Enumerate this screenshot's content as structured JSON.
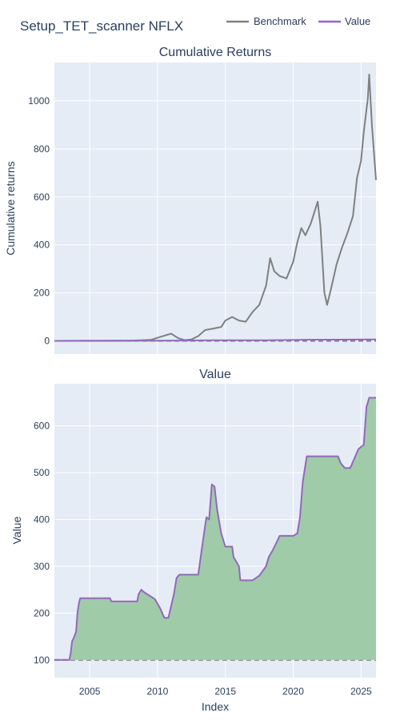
{
  "title": "Setup_TET_scanner NFLX",
  "legend": [
    {
      "name": "Benchmark",
      "color": "#808080"
    },
    {
      "name": "Value",
      "color": "#9467bd"
    }
  ],
  "chart_data": [
    {
      "type": "line",
      "title": "Cumulative Returns",
      "ylabel": "Cumulative returns",
      "xlim": [
        2002.4,
        2026.1
      ],
      "ylim": [
        -55,
        1160
      ],
      "yticks": [
        0,
        200,
        400,
        600,
        800,
        1000
      ],
      "xticks": [
        2005,
        2010,
        2015,
        2020,
        2025
      ],
      "series": [
        {
          "name": "Benchmark",
          "color": "#808080",
          "x": [
            2002.4,
            2004.0,
            2006.0,
            2008.0,
            2009.5,
            2010.3,
            2011.0,
            2011.5,
            2012.0,
            2012.5,
            2013.0,
            2013.5,
            2014.0,
            2014.7,
            2015.0,
            2015.5,
            2016.0,
            2016.5,
            2017.0,
            2017.5,
            2018.0,
            2018.3,
            2018.6,
            2019.0,
            2019.5,
            2020.0,
            2020.3,
            2020.6,
            2020.9,
            2021.3,
            2021.8,
            2022.0,
            2022.3,
            2022.5,
            2022.8,
            2023.2,
            2023.6,
            2024.0,
            2024.4,
            2024.7,
            2025.0,
            2025.2,
            2025.5,
            2025.6,
            2025.8,
            2026.1
          ],
          "values": [
            0,
            0,
            0,
            1,
            4,
            18,
            30,
            12,
            3,
            6,
            20,
            45,
            50,
            58,
            85,
            100,
            85,
            80,
            120,
            150,
            230,
            345,
            290,
            270,
            260,
            330,
            410,
            470,
            440,
            490,
            580,
            480,
            200,
            150,
            220,
            320,
            390,
            450,
            520,
            680,
            750,
            870,
            1010,
            1110,
            900,
            670
          ]
        },
        {
          "name": "Value",
          "color": "#9467bd",
          "x": [
            2002.4,
            2005.0,
            2010.0,
            2014.0,
            2018.0,
            2020.5,
            2023.5,
            2025.5,
            2026.1
          ],
          "values": [
            0,
            1,
            1.2,
            2.5,
            2.7,
            4.4,
            5.2,
            5.7,
            5.7
          ]
        }
      ],
      "baseline": 0
    },
    {
      "type": "area",
      "title": "Value",
      "xlabel": "Index",
      "ylabel": "Value",
      "xlim": [
        2002.4,
        2026.1
      ],
      "ylim": [
        62,
        690
      ],
      "yticks": [
        100,
        200,
        300,
        400,
        500,
        600
      ],
      "xticks": [
        2005,
        2010,
        2015,
        2020,
        2025
      ],
      "series": [
        {
          "name": "Value",
          "color": "#9467bd",
          "fill": "#a0cba8",
          "x": [
            2002.4,
            2003.4,
            2003.5,
            2003.6,
            2003.7,
            2003.8,
            2004.0,
            2004.1,
            2004.2,
            2004.3,
            2004.5,
            2004.6,
            2006.5,
            2006.6,
            2008.5,
            2008.6,
            2008.8,
            2009.0,
            2009.8,
            2010.2,
            2010.5,
            2010.8,
            2011.2,
            2011.4,
            2011.6,
            2013.0,
            2013.3,
            2013.6,
            2013.8,
            2014.0,
            2014.2,
            2014.4,
            2014.7,
            2015.0,
            2015.5,
            2015.6,
            2016.0,
            2016.1,
            2016.5,
            2016.6,
            2017.0,
            2017.5,
            2018.0,
            2018.2,
            2018.5,
            2019.0,
            2019.5,
            2020.0,
            2020.3,
            2020.5,
            2020.7,
            2021.0,
            2023.3,
            2023.5,
            2023.8,
            2024.2,
            2024.5,
            2024.8,
            2025.2,
            2025.4,
            2025.6,
            2026.1
          ],
          "values": [
            100,
            100,
            100,
            115,
            140,
            145,
            160,
            200,
            220,
            232,
            232,
            232,
            232,
            225,
            225,
            240,
            250,
            245,
            230,
            210,
            190,
            190,
            240,
            275,
            282,
            282,
            345,
            405,
            400,
            475,
            470,
            420,
            370,
            342,
            342,
            320,
            300,
            270,
            270,
            270,
            270,
            280,
            300,
            320,
            335,
            365,
            365,
            365,
            370,
            405,
            480,
            535,
            535,
            520,
            510,
            510,
            530,
            550,
            560,
            640,
            660,
            660
          ]
        }
      ],
      "baseline": 100
    }
  ]
}
